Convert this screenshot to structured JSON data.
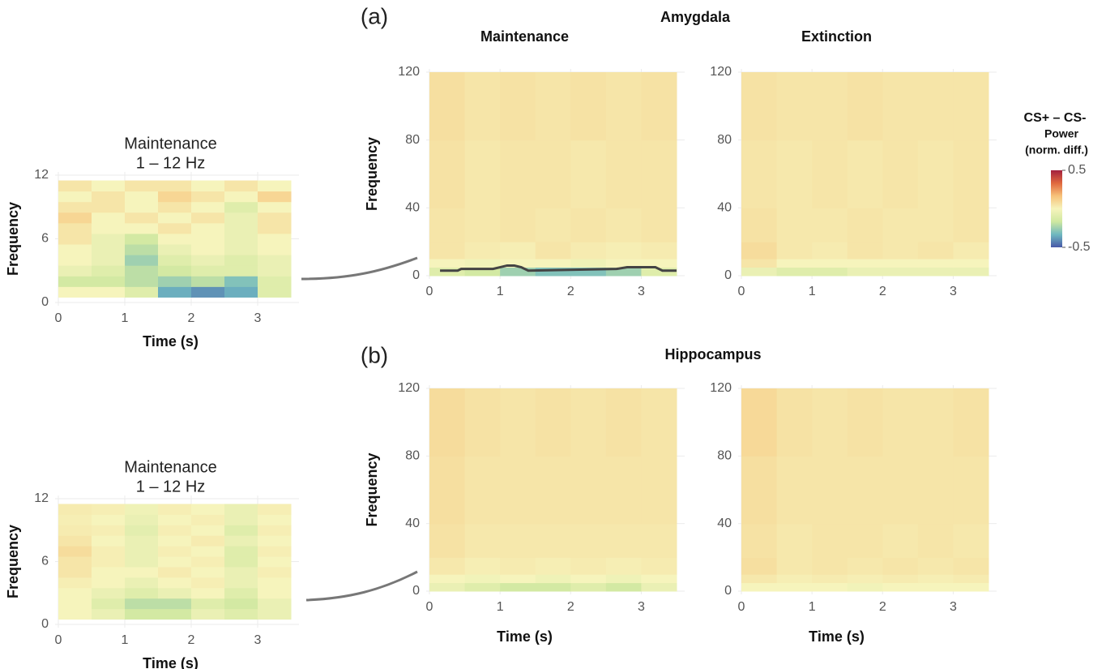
{
  "figure": {
    "a_label": "(a)",
    "a_title": "Amygdala",
    "b_label": "(b)",
    "b_title": "Hippocampus"
  },
  "colorbar": {
    "title": "CS+ – CS-",
    "subtitle": "Power",
    "note": "(norm. diff.)",
    "lim": [
      -0.5,
      0.5
    ],
    "ticks": [
      0.5,
      -0.5
    ],
    "colors": [
      "#4758a8",
      "#6fb8c0",
      "#cfe8a0",
      "#f6f4bc",
      "#f7c27a",
      "#e0683e",
      "#a3203e"
    ]
  },
  "chart_data": [
    {
      "type": "heatmap",
      "title": "Maintenance",
      "subtitle": "1 – 12 Hz",
      "xlabel": "Time (s)",
      "ylabel": "Frequency",
      "xlim": [
        0,
        3.5
      ],
      "xticks": [
        0,
        1,
        2,
        3
      ],
      "ylim": [
        0,
        12
      ],
      "yticks": [
        0,
        6,
        12
      ],
      "grid": true,
      "xbins": [
        0,
        0.5,
        1,
        1.5,
        2,
        2.5,
        3,
        3.5
      ],
      "ybins": [
        0.5,
        1.5,
        2.5,
        3.5,
        4.5,
        5.5,
        6.5,
        7.5,
        8.5,
        9.5,
        10.5,
        11.5
      ],
      "z": [
        [
          0.0,
          0.0,
          -0.1,
          -0.35,
          -0.4,
          -0.35,
          -0.1
        ],
        [
          -0.15,
          -0.15,
          -0.2,
          -0.25,
          -0.2,
          -0.3,
          -0.1
        ],
        [
          -0.05,
          -0.1,
          -0.2,
          -0.15,
          -0.1,
          -0.1,
          -0.05
        ],
        [
          0.0,
          -0.05,
          -0.25,
          -0.1,
          -0.05,
          -0.1,
          -0.05
        ],
        [
          0.0,
          -0.05,
          -0.2,
          -0.05,
          0.0,
          -0.05,
          0.0
        ],
        [
          0.05,
          -0.05,
          -0.15,
          0.0,
          0.0,
          -0.05,
          0.0
        ],
        [
          0.05,
          0.0,
          0.0,
          0.05,
          0.0,
          -0.05,
          0.05
        ],
        [
          0.1,
          0.0,
          0.05,
          0.0,
          0.05,
          -0.05,
          0.05
        ],
        [
          0.05,
          0.05,
          0.0,
          0.05,
          0.0,
          -0.1,
          0.0
        ],
        [
          0.0,
          0.05,
          0.0,
          0.1,
          0.05,
          0.0,
          0.1
        ],
        [
          0.05,
          0.0,
          0.05,
          0.05,
          0.0,
          0.05,
          0.0
        ]
      ]
    },
    {
      "type": "heatmap",
      "title": "Maintenance",
      "ylabel": "Frequency",
      "xlim": [
        0,
        3.5
      ],
      "xticks": [
        0,
        1,
        2,
        3
      ],
      "ylim": [
        0,
        120
      ],
      "yticks": [
        0,
        40,
        80,
        120
      ],
      "grid": true,
      "xbins": [
        0,
        0.5,
        1,
        1.5,
        2,
        2.5,
        3,
        3.5
      ],
      "ybins": [
        0,
        5,
        10,
        20,
        40,
        80,
        120
      ],
      "z": [
        [
          -0.1,
          -0.15,
          -0.25,
          -0.3,
          -0.3,
          -0.25,
          -0.1
        ],
        [
          0.0,
          -0.02,
          0.0,
          0.0,
          -0.03,
          0.0,
          0.0
        ],
        [
          0.05,
          0.03,
          0.02,
          0.05,
          0.03,
          0.02,
          0.03
        ],
        [
          0.05,
          0.04,
          0.05,
          0.04,
          0.05,
          0.04,
          0.05
        ],
        [
          0.06,
          0.04,
          0.05,
          0.05,
          0.04,
          0.05,
          0.05
        ],
        [
          0.07,
          0.05,
          0.06,
          0.05,
          0.06,
          0.05,
          0.06
        ]
      ],
      "cluster": {
        "x": [
          0.15,
          0.4,
          0.45,
          0.9,
          1.0,
          1.1,
          1.2,
          1.3,
          1.4,
          2.65,
          2.8,
          3.2,
          3.3,
          3.5
        ],
        "y": [
          3,
          3,
          4,
          4,
          5,
          6,
          6,
          5,
          3,
          4,
          5,
          5,
          3,
          3
        ]
      }
    },
    {
      "type": "heatmap",
      "title": "Extinction",
      "xlim": [
        0,
        3.5
      ],
      "xticks": [
        0,
        1,
        2,
        3
      ],
      "ylim": [
        0,
        120
      ],
      "yticks": [
        0,
        40,
        80,
        120
      ],
      "grid": true,
      "xbins": [
        0,
        0.5,
        1,
        1.5,
        2,
        2.5,
        3,
        3.5
      ],
      "ybins": [
        0,
        5,
        10,
        20,
        40,
        80,
        120
      ],
      "z": [
        [
          -0.05,
          -0.1,
          -0.1,
          -0.05,
          -0.05,
          -0.05,
          -0.05
        ],
        [
          0.05,
          0.0,
          0.0,
          0.0,
          0.0,
          0.0,
          0.0
        ],
        [
          0.08,
          0.04,
          0.03,
          0.05,
          0.04,
          0.05,
          0.03
        ],
        [
          0.06,
          0.04,
          0.04,
          0.05,
          0.04,
          0.04,
          0.05
        ],
        [
          0.05,
          0.04,
          0.05,
          0.04,
          0.05,
          0.04,
          0.05
        ],
        [
          0.06,
          0.05,
          0.05,
          0.06,
          0.05,
          0.05,
          0.05
        ]
      ]
    },
    {
      "type": "heatmap",
      "title": "Maintenance",
      "subtitle": "1 – 12 Hz",
      "xlabel": "Time (s)",
      "ylabel": "Frequency",
      "xlim": [
        0,
        3.5
      ],
      "xticks": [
        0,
        1,
        2,
        3
      ],
      "ylim": [
        0,
        12
      ],
      "yticks": [
        0,
        6,
        12
      ],
      "grid": true,
      "xbins": [
        0,
        0.5,
        1,
        1.5,
        2,
        2.5,
        3,
        3.5
      ],
      "ybins": [
        0.5,
        1.5,
        2.5,
        3.5,
        4.5,
        5.5,
        6.5,
        7.5,
        8.5,
        9.5,
        10.5,
        11.5
      ],
      "z": [
        [
          0.0,
          -0.05,
          -0.15,
          -0.15,
          -0.05,
          -0.1,
          -0.05
        ],
        [
          0.0,
          -0.1,
          -0.2,
          -0.2,
          -0.1,
          -0.15,
          -0.05
        ],
        [
          0.0,
          -0.05,
          -0.1,
          -0.05,
          0.0,
          -0.1,
          0.0
        ],
        [
          0.02,
          0.0,
          -0.05,
          0.0,
          0.02,
          -0.05,
          0.0
        ],
        [
          0.05,
          0.0,
          0.0,
          0.03,
          0.0,
          -0.05,
          0.02
        ],
        [
          0.05,
          0.02,
          -0.05,
          0.0,
          0.02,
          -0.1,
          0.0
        ],
        [
          0.08,
          0.02,
          -0.05,
          0.02,
          0.0,
          -0.1,
          0.02
        ],
        [
          0.05,
          0.0,
          -0.05,
          0.0,
          0.03,
          -0.05,
          0.0
        ],
        [
          0.03,
          0.02,
          -0.08,
          0.02,
          0.0,
          -0.1,
          0.02
        ],
        [
          0.02,
          0.0,
          -0.05,
          0.0,
          0.02,
          -0.05,
          0.0
        ],
        [
          0.03,
          0.02,
          -0.03,
          0.02,
          0.0,
          -0.05,
          0.02
        ]
      ]
    },
    {
      "type": "heatmap",
      "xlabel": "Time (s)",
      "ylabel": "Frequency",
      "xlim": [
        0,
        3.5
      ],
      "xticks": [
        0,
        1,
        2,
        3
      ],
      "ylim": [
        0,
        120
      ],
      "yticks": [
        0,
        40,
        80,
        120
      ],
      "grid": true,
      "xbins": [
        0,
        0.5,
        1,
        1.5,
        2,
        2.5,
        3,
        3.5
      ],
      "ybins": [
        0,
        5,
        10,
        20,
        40,
        80,
        120
      ],
      "z": [
        [
          -0.05,
          -0.1,
          -0.15,
          -0.15,
          -0.1,
          -0.15,
          -0.05
        ],
        [
          0.0,
          -0.02,
          0.0,
          -0.03,
          0.0,
          -0.03,
          0.0
        ],
        [
          0.04,
          0.02,
          0.03,
          0.02,
          0.03,
          0.02,
          0.03
        ],
        [
          0.06,
          0.04,
          0.04,
          0.04,
          0.04,
          0.04,
          0.04
        ],
        [
          0.07,
          0.05,
          0.05,
          0.05,
          0.05,
          0.05,
          0.05
        ],
        [
          0.08,
          0.06,
          0.05,
          0.06,
          0.05,
          0.06,
          0.05
        ]
      ]
    },
    {
      "type": "heatmap",
      "xlabel": "Time (s)",
      "xlim": [
        0,
        3.5
      ],
      "xticks": [
        0,
        1,
        2,
        3
      ],
      "ylim": [
        0,
        120
      ],
      "yticks": [
        0,
        40,
        80,
        120
      ],
      "grid": true,
      "xbins": [
        0,
        0.5,
        1,
        1.5,
        2,
        2.5,
        3,
        3.5
      ],
      "ybins": [
        0,
        5,
        10,
        20,
        40,
        80,
        120
      ],
      "z": [
        [
          0.0,
          0.0,
          0.0,
          -0.02,
          0.0,
          0.0,
          0.0
        ],
        [
          0.04,
          0.02,
          0.03,
          0.02,
          0.03,
          0.02,
          0.03
        ],
        [
          0.07,
          0.04,
          0.05,
          0.04,
          0.05,
          0.04,
          0.05
        ],
        [
          0.06,
          0.04,
          0.05,
          0.05,
          0.04,
          0.05,
          0.04
        ],
        [
          0.07,
          0.05,
          0.05,
          0.05,
          0.05,
          0.05,
          0.05
        ],
        [
          0.09,
          0.06,
          0.05,
          0.06,
          0.05,
          0.05,
          0.06
        ]
      ]
    }
  ]
}
